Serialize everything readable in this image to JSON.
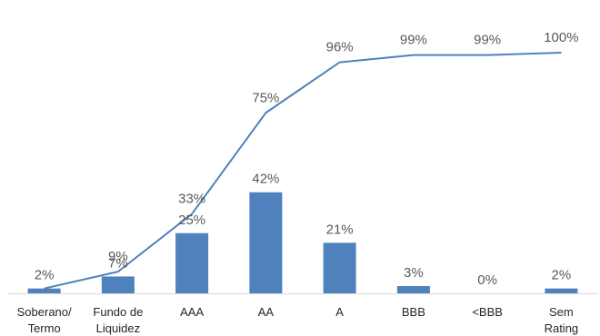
{
  "chart_data": {
    "type": "bar",
    "categories": [
      [
        "Soberano/",
        "Termo"
      ],
      [
        "Fundo de",
        "Liquidez"
      ],
      [
        "AAA"
      ],
      [
        "AA"
      ],
      [
        "A"
      ],
      [
        "BBB"
      ],
      [
        "<BBB"
      ],
      [
        "Sem",
        "Rating"
      ]
    ],
    "series": [
      {
        "type": "bar",
        "values": [
          2,
          7,
          25,
          42,
          21,
          3,
          0,
          2
        ],
        "labels": [
          "2%",
          "7%",
          "25%",
          "42%",
          "21%",
          "3%",
          "0%",
          "2%"
        ]
      },
      {
        "type": "line",
        "values": [
          2,
          9,
          33,
          75,
          96,
          99,
          99,
          100
        ],
        "labels": [
          "",
          "9%",
          "33%",
          "75%",
          "96%",
          "99%",
          "99%",
          "100%"
        ]
      }
    ],
    "ylim": [
      0,
      110
    ],
    "grid": false,
    "legend": "none",
    "colors": {
      "bar": "#4F81BD",
      "line": "#4F81BD",
      "axis": "#D9D9D9",
      "label": "#595959",
      "tick": "#262626"
    }
  }
}
